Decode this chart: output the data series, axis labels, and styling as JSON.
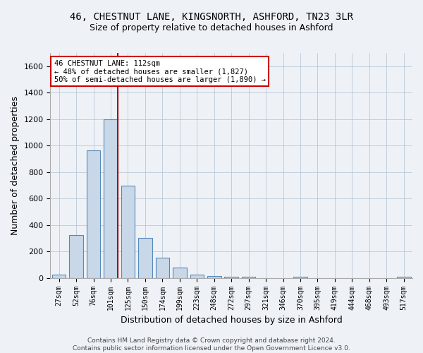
{
  "title_line1": "46, CHESTNUT LANE, KINGSNORTH, ASHFORD, TN23 3LR",
  "title_line2": "Size of property relative to detached houses in Ashford",
  "xlabel": "Distribution of detached houses by size in Ashford",
  "ylabel": "Number of detached properties",
  "categories": [
    "27sqm",
    "52sqm",
    "76sqm",
    "101sqm",
    "125sqm",
    "150sqm",
    "174sqm",
    "199sqm",
    "223sqm",
    "248sqm",
    "272sqm",
    "297sqm",
    "321sqm",
    "346sqm",
    "370sqm",
    "395sqm",
    "419sqm",
    "444sqm",
    "468sqm",
    "493sqm",
    "517sqm"
  ],
  "values": [
    25,
    325,
    965,
    1200,
    695,
    305,
    155,
    80,
    25,
    15,
    10,
    10,
    0,
    0,
    10,
    0,
    0,
    0,
    0,
    0,
    10
  ],
  "bar_color": "#c8d8e8",
  "bar_edge_color": "#5588bb",
  "vline_color": "#aa0000",
  "ylim": [
    0,
    1700
  ],
  "yticks": [
    0,
    200,
    400,
    600,
    800,
    1000,
    1200,
    1400,
    1600
  ],
  "annotation_line1": "46 CHESTNUT LANE: 112sqm",
  "annotation_line2": "← 48% of detached houses are smaller (1,827)",
  "annotation_line3": "50% of semi-detached houses are larger (1,890) →",
  "annotation_box_color": "#ffffff",
  "annotation_box_edge": "#cc0000",
  "footer_line1": "Contains HM Land Registry data © Crown copyright and database right 2024.",
  "footer_line2": "Contains public sector information licensed under the Open Government Licence v3.0.",
  "bg_color": "#eef2f7",
  "grid_color": "#b0c0d0",
  "title_fontsize": 10,
  "subtitle_fontsize": 9,
  "tick_fontsize": 7,
  "ylabel_fontsize": 9,
  "xlabel_fontsize": 9,
  "annotation_fontsize": 7.5,
  "footer_fontsize": 6.5
}
